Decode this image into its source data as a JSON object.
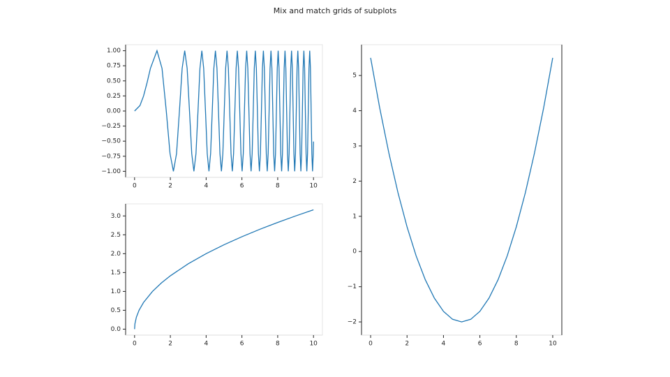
{
  "title": "Mix and match grids of subplots",
  "chart_data": [
    {
      "type": "line",
      "color": "#1f77b4",
      "x": [
        0,
        0.3,
        0.5,
        0.7,
        0.886,
        1.253,
        1.535,
        1.772,
        1.982,
        2.171,
        2.345,
        2.507,
        2.659,
        2.802,
        2.939,
        3.07,
        3.195,
        3.316,
        3.432,
        3.545,
        3.654,
        3.76,
        3.863,
        3.963,
        4.061,
        4.157,
        4.25,
        4.342,
        4.431,
        4.519,
        4.605,
        4.69,
        4.772,
        4.854,
        4.934,
        5.013,
        5.091,
        5.168,
        5.243,
        5.317,
        5.391,
        5.463,
        5.534,
        5.605,
        5.675,
        5.743,
        5.811,
        5.879,
        5.945,
        6.011,
        6.076,
        6.14,
        6.204,
        6.267,
        6.329,
        6.391,
        6.452,
        6.512,
        6.572,
        6.632,
        6.691,
        6.749,
        6.807,
        6.865,
        6.922,
        6.978,
        7.034,
        7.09,
        7.145,
        7.2,
        7.254,
        7.308,
        7.362,
        7.415,
        7.467,
        7.52,
        7.572,
        7.624,
        7.675,
        7.726,
        7.777,
        7.827,
        7.877,
        7.927,
        7.976,
        8.025,
        8.074,
        8.122,
        8.171,
        8.219,
        8.266,
        8.314,
        8.361,
        8.408,
        8.454,
        8.5,
        8.546,
        8.592,
        8.638,
        8.683,
        8.728,
        8.773,
        8.818,
        8.862,
        8.906,
        8.95,
        8.994,
        9.038,
        9.081,
        9.124,
        9.167,
        9.21,
        9.253,
        9.295,
        9.337,
        9.379,
        9.421,
        9.462,
        9.504,
        9.545,
        9.586,
        9.627,
        9.668,
        9.708,
        9.748,
        9.789,
        9.829,
        9.869,
        9.908,
        9.948,
        9.987,
        10
      ],
      "values": [
        0,
        0.09,
        0.247,
        0.471,
        0.707,
        1,
        0.707,
        0,
        -0.707,
        -1,
        -0.707,
        0,
        0.707,
        1,
        0.707,
        0,
        -0.707,
        -1,
        -0.707,
        0,
        0.707,
        1,
        0.707,
        0,
        -0.707,
        -1,
        -0.707,
        0,
        0.707,
        1,
        0.707,
        0,
        -0.707,
        -1,
        -0.707,
        0,
        0.707,
        1,
        0.707,
        0,
        -0.707,
        -1,
        -0.707,
        0,
        0.707,
        1,
        0.707,
        0,
        -0.707,
        -1,
        -0.707,
        0,
        0.707,
        1,
        0.707,
        0,
        -0.707,
        -1,
        -0.707,
        0,
        0.707,
        1,
        0.707,
        0,
        -0.707,
        -1,
        -0.707,
        0,
        0.707,
        1,
        0.707,
        0,
        -0.707,
        -1,
        -0.707,
        0,
        0.707,
        1,
        0.707,
        0,
        -0.707,
        -1,
        -0.707,
        0,
        0.707,
        1,
        0.707,
        0,
        -0.707,
        -1,
        -0.707,
        0,
        0.707,
        1,
        0.707,
        0,
        -0.707,
        -1,
        -0.707,
        0,
        0.707,
        1,
        0.707,
        0,
        -0.707,
        -1,
        -0.707,
        0,
        0.707,
        1,
        0.707,
        0,
        -0.707,
        -1,
        -0.707,
        0,
        0.707,
        1,
        0.707,
        0,
        -0.707,
        -1,
        -0.707,
        0,
        0.707,
        1,
        0.707,
        0,
        -0.707,
        -1,
        -0.707,
        -0.506
      ],
      "xlim": [
        -0.5,
        10.5
      ],
      "xticks": [
        0,
        2,
        4,
        6,
        8,
        10
      ],
      "ylim": [
        -1.1,
        1.1
      ],
      "yticks": [
        {
          "value": -1,
          "label": "−1.00"
        },
        {
          "value": -0.75,
          "label": "−0.75"
        },
        {
          "value": -0.5,
          "label": "−0.50"
        },
        {
          "value": -0.25,
          "label": "−0.25"
        },
        {
          "value": 0,
          "label": "0.00"
        },
        {
          "value": 0.25,
          "label": "0.25"
        },
        {
          "value": 0.5,
          "label": "0.50"
        },
        {
          "value": 0.75,
          "label": "0.75"
        },
        {
          "value": 1,
          "label": "1.00"
        }
      ]
    },
    {
      "type": "line",
      "color": "#1f77b4",
      "x": [
        0,
        0.02,
        0.1,
        0.25,
        0.5,
        1,
        1.5,
        2,
        3,
        4,
        5,
        6,
        7,
        8,
        9,
        10
      ],
      "values": [
        0,
        0.141,
        0.316,
        0.5,
        0.707,
        1,
        1.225,
        1.414,
        1.732,
        2,
        2.236,
        2.449,
        2.646,
        2.828,
        3,
        3.162
      ],
      "xlim": [
        -0.5,
        10.5
      ],
      "xticks": [
        0,
        2,
        4,
        6,
        8,
        10
      ],
      "ylim": [
        -0.158,
        3.32
      ],
      "yticks": [
        {
          "value": 0,
          "label": "0.0"
        },
        0.5,
        {
          "value": 1,
          "label": "1.0"
        },
        1.5,
        {
          "value": 2,
          "label": "2.0"
        },
        2.5,
        {
          "value": 3,
          "label": "3.0"
        }
      ]
    },
    {
      "type": "line",
      "color": "#1f77b4",
      "x": [
        0,
        0.5,
        1,
        1.5,
        2,
        2.5,
        3,
        3.5,
        4,
        4.5,
        5,
        5.5,
        6,
        6.5,
        7,
        7.5,
        8,
        8.5,
        9,
        9.5,
        10
      ],
      "values": [
        5.5,
        4.075,
        2.8,
        1.675,
        0.7,
        -0.125,
        -0.8,
        -1.325,
        -1.7,
        -1.925,
        -2,
        -1.925,
        -1.7,
        -1.325,
        -0.8,
        -0.125,
        0.7,
        1.675,
        2.8,
        4.075,
        5.5
      ],
      "xlim": [
        -0.5,
        10.5
      ],
      "xticks": [
        0,
        2,
        4,
        6,
        8,
        10
      ],
      "ylim": [
        -2.375,
        5.875
      ],
      "yticks": [
        {
          "value": -2,
          "label": "−2"
        },
        {
          "value": -1,
          "label": "−1"
        },
        0,
        1,
        2,
        3,
        4,
        5
      ]
    }
  ]
}
